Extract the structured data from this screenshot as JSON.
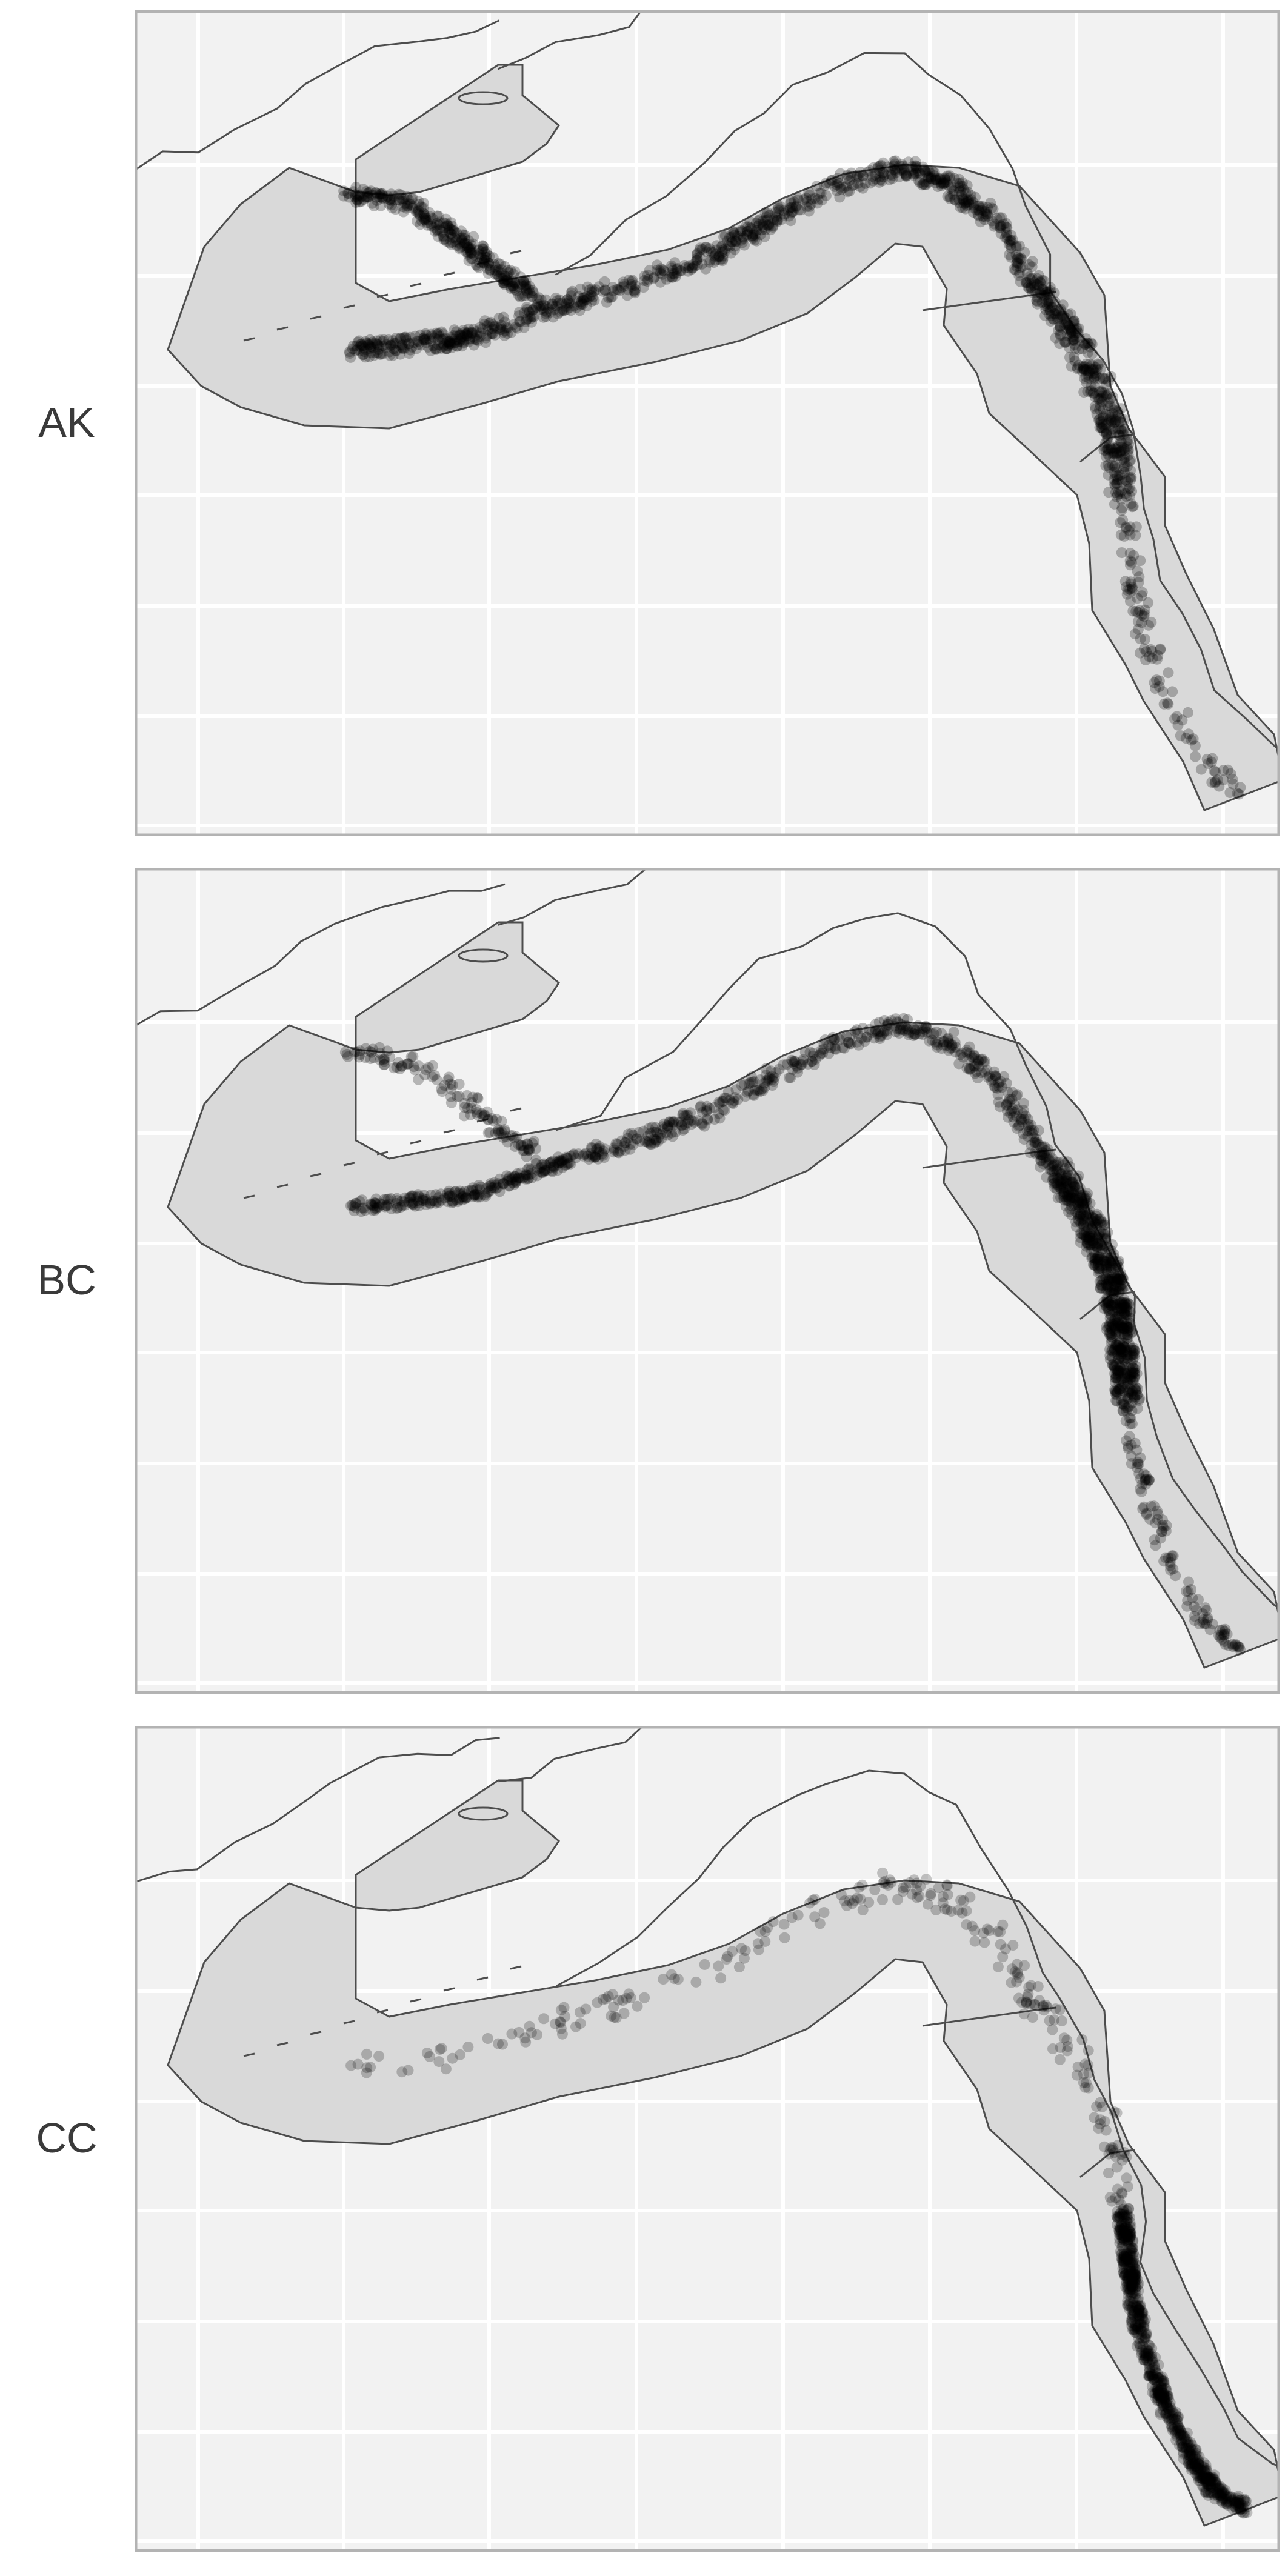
{
  "panels": [
    {
      "label": "AK",
      "density_focus": "alaska"
    },
    {
      "label": "BC",
      "density_focus": "british-columbia"
    },
    {
      "label": "CC",
      "density_focus": "california-current"
    }
  ],
  "colors": {
    "panel_background": "#f2f2f2",
    "panel_border": "#b3b3b3",
    "grid": "#ffffff",
    "region_fill": "#d9d9d9",
    "outline": "#4d4d4d",
    "points": "#000000"
  }
}
